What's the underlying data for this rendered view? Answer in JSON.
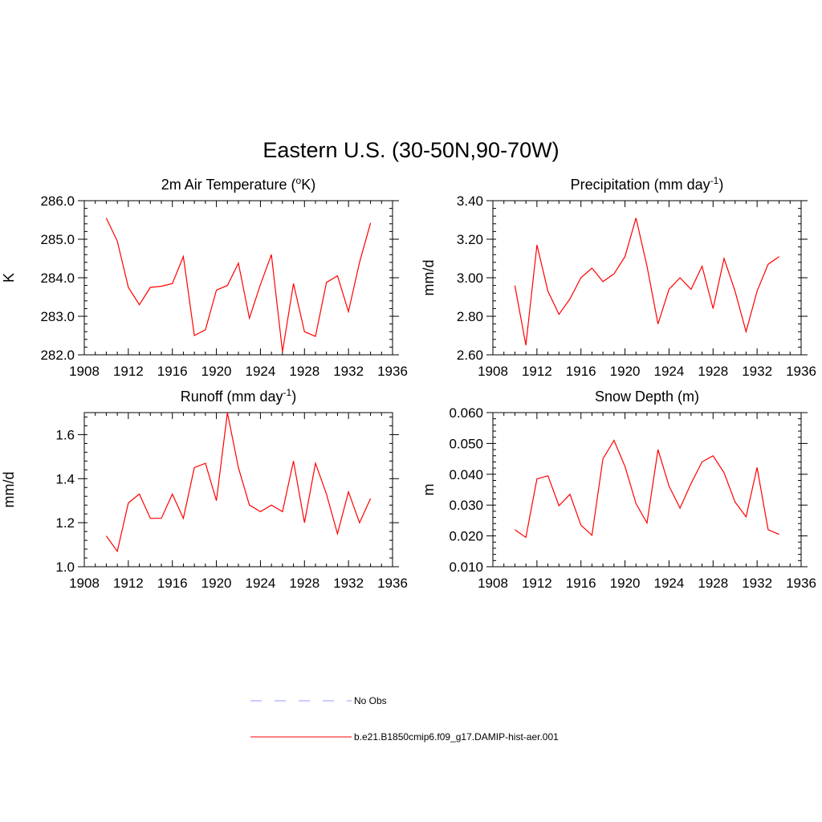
{
  "figure": {
    "title": "Eastern U.S. (30-50N,90-70W)"
  },
  "legend": {
    "entries": [
      {
        "label": "No Obs",
        "color": "#9999ff",
        "dashed": true
      },
      {
        "label": "b.e21.B1850cmip6.f09_g17.DAMIP-hist-aer.001",
        "color": "#ff0000",
        "dashed": false
      }
    ]
  },
  "chart_data": [
    {
      "type": "line",
      "title": "2m Air Temperature (",
      "title_sup": "o",
      "title_after": "K)",
      "ylabel": "K",
      "xlim": [
        1908,
        1936
      ],
      "ylim": [
        282.0,
        286.0
      ],
      "xticks": [
        "1908",
        "1912",
        "1916",
        "1920",
        "1924",
        "1928",
        "1932",
        "1936"
      ],
      "yticks": [
        "282.0",
        "283.0",
        "284.0",
        "285.0",
        "286.0"
      ],
      "ytick_values": [
        282.0,
        283.0,
        284.0,
        285.0,
        286.0
      ],
      "series": [
        {
          "color": "#ff0000",
          "x": [
            1910,
            1911,
            1912,
            1913,
            1914,
            1915,
            1916,
            1917,
            1918,
            1919,
            1920,
            1921,
            1922,
            1923,
            1924,
            1925,
            1926,
            1927,
            1928,
            1929,
            1930,
            1931,
            1932,
            1933,
            1934
          ],
          "y": [
            285.55,
            284.95,
            283.75,
            283.3,
            283.75,
            283.78,
            283.85,
            284.55,
            282.5,
            282.65,
            283.68,
            283.8,
            284.38,
            282.95,
            283.82,
            284.6,
            282.08,
            283.85,
            282.6,
            282.48,
            283.88,
            284.05,
            283.12,
            284.4,
            285.42
          ]
        }
      ]
    },
    {
      "type": "line",
      "title": "Precipitation (mm day",
      "title_sup": "-1",
      "title_after": ")",
      "ylabel": "mm/d",
      "xlim": [
        1908,
        1936
      ],
      "ylim": [
        2.6,
        3.4
      ],
      "xticks": [
        "1908",
        "1912",
        "1916",
        "1920",
        "1924",
        "1928",
        "1932",
        "1936"
      ],
      "yticks": [
        "2.60",
        "2.80",
        "3.00",
        "3.20",
        "3.40"
      ],
      "ytick_values": [
        2.6,
        2.8,
        3.0,
        3.2,
        3.4
      ],
      "series": [
        {
          "color": "#ff0000",
          "x": [
            1910,
            1911,
            1912,
            1913,
            1914,
            1915,
            1916,
            1917,
            1918,
            1919,
            1920,
            1921,
            1922,
            1923,
            1924,
            1925,
            1926,
            1927,
            1928,
            1929,
            1930,
            1931,
            1932,
            1933,
            1934
          ],
          "y": [
            2.96,
            2.65,
            3.17,
            2.93,
            2.81,
            2.89,
            3.0,
            3.05,
            2.98,
            3.02,
            3.11,
            3.31,
            3.06,
            2.76,
            2.94,
            3.0,
            2.94,
            3.06,
            2.84,
            3.1,
            2.93,
            2.72,
            2.93,
            3.07,
            3.11
          ]
        }
      ]
    },
    {
      "type": "line",
      "title": "Runoff (mm day",
      "title_sup": "-1",
      "title_after": ")",
      "ylabel": "mm/d",
      "xlim": [
        1908,
        1936
      ],
      "ylim": [
        1.0,
        1.7
      ],
      "xticks": [
        "1908",
        "1912",
        "1916",
        "1920",
        "1924",
        "1928",
        "1932",
        "1936"
      ],
      "yticks": [
        "1.0",
        "1.2",
        "1.4",
        "1.6"
      ],
      "ytick_values": [
        1.0,
        1.2,
        1.4,
        1.6
      ],
      "series": [
        {
          "color": "#ff0000",
          "x": [
            1910,
            1911,
            1912,
            1913,
            1914,
            1915,
            1916,
            1917,
            1918,
            1919,
            1920,
            1921,
            1922,
            1923,
            1924,
            1925,
            1926,
            1927,
            1928,
            1929,
            1930,
            1931,
            1932,
            1933,
            1934
          ],
          "y": [
            1.14,
            1.07,
            1.29,
            1.33,
            1.22,
            1.22,
            1.33,
            1.22,
            1.45,
            1.47,
            1.3,
            1.7,
            1.45,
            1.28,
            1.25,
            1.28,
            1.25,
            1.48,
            1.2,
            1.47,
            1.33,
            1.15,
            1.34,
            1.2,
            1.31
          ]
        }
      ]
    },
    {
      "type": "line",
      "title": "Snow Depth (m)",
      "title_sup": "",
      "title_after": "",
      "ylabel": "m",
      "xlim": [
        1908,
        1936
      ],
      "ylim": [
        0.01,
        0.06
      ],
      "xticks": [
        "1908",
        "1912",
        "1916",
        "1920",
        "1924",
        "1928",
        "1932",
        "1936"
      ],
      "yticks": [
        "0.010",
        "0.020",
        "0.030",
        "0.040",
        "0.050",
        "0.060"
      ],
      "ytick_values": [
        0.01,
        0.02,
        0.03,
        0.04,
        0.05,
        0.06
      ],
      "series": [
        {
          "color": "#ff0000",
          "x": [
            1910,
            1911,
            1912,
            1913,
            1914,
            1915,
            1916,
            1917,
            1918,
            1919,
            1920,
            1921,
            1922,
            1923,
            1924,
            1925,
            1926,
            1927,
            1928,
            1929,
            1930,
            1931,
            1932,
            1933,
            1934
          ],
          "y": [
            0.022,
            0.0195,
            0.0385,
            0.0395,
            0.0298,
            0.0335,
            0.0235,
            0.0202,
            0.045,
            0.051,
            0.0425,
            0.0305,
            0.0242,
            0.048,
            0.0362,
            0.029,
            0.037,
            0.044,
            0.046,
            0.0405,
            0.031,
            0.0262,
            0.0422,
            0.022,
            0.0205
          ]
        }
      ]
    }
  ]
}
